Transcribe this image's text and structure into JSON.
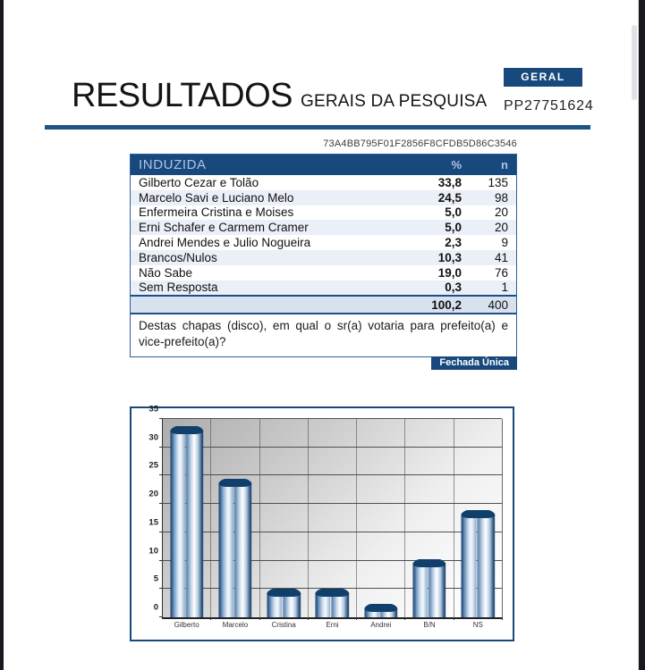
{
  "header": {
    "title": "RESULTADOS",
    "subtitle": "GERAIS DA PESQUISA",
    "badge": "GERAL",
    "code": "PP27751624"
  },
  "hash": "73A4BB795F01F2856F8CFDB5D86C3546",
  "table": {
    "header": {
      "label": "INDUZIDA",
      "pct": "%",
      "n": "n"
    },
    "rows": [
      {
        "label": "Gilberto Cezar e Tolão",
        "pct": "33,8",
        "n": "135"
      },
      {
        "label": "Marcelo Savi e Luciano Melo",
        "pct": "24,5",
        "n": "98"
      },
      {
        "label": "Enfermeira Cristina e Moises",
        "pct": "5,0",
        "n": "20"
      },
      {
        "label": "Erni Schafer e Carmem Cramer",
        "pct": "5,0",
        "n": "20"
      },
      {
        "label": "Andrei Mendes e Julio Nogueira",
        "pct": "2,3",
        "n": "9"
      },
      {
        "label": "Brancos/Nulos",
        "pct": "10,3",
        "n": "41"
      },
      {
        "label": "Não Sabe",
        "pct": "19,0",
        "n": "76"
      },
      {
        "label": "Sem Resposta",
        "pct": "0,3",
        "n": "1"
      }
    ],
    "total": {
      "pct": "100,2",
      "n": "400"
    },
    "question": "Destas chapas (disco), em qual o sr(a) votaria para prefeito(a) e vice-prefeito(a)?",
    "question_type": "Fechada Única"
  },
  "chart_data": {
    "type": "bar",
    "categories": [
      "Gilberto",
      "Marcelo",
      "Cristina",
      "Erni",
      "Andrei",
      "B/N",
      "NS"
    ],
    "values": [
      33.8,
      24.5,
      5.0,
      5.0,
      2.3,
      10.3,
      19.0
    ],
    "title": "",
    "xlabel": "",
    "ylabel": "",
    "ylim": [
      0,
      35
    ],
    "yticks": [
      0,
      5,
      10,
      15,
      20,
      25,
      30,
      35
    ],
    "grid": true,
    "legend": false
  },
  "colors": {
    "navy": "#17497d",
    "rule_blue": "#1b5687",
    "row_stripe": "#eaeff8",
    "total_bg": "#d8e1ee",
    "bar_edge": "#123f6a",
    "edge_black": "#18181f"
  }
}
